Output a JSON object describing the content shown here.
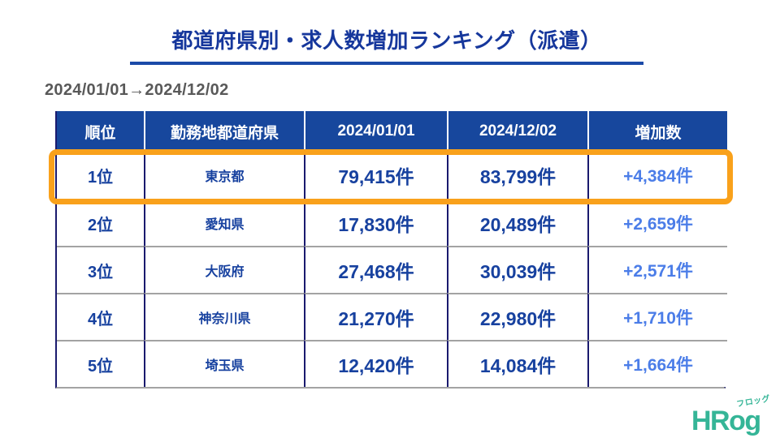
{
  "title": "都道府県別・求人数増加ランキング（派遣）",
  "period": "2024/01/01→2024/12/02",
  "table": {
    "headers": [
      "順位",
      "勤務地都道府県",
      "2024/01/01",
      "2024/12/02",
      "増加数"
    ],
    "rows": [
      {
        "rank": "1位",
        "prefecture": "東京都",
        "count_start": "79,415件",
        "count_end": "83,799件",
        "increase": "+4,384件",
        "highlighted": true
      },
      {
        "rank": "2位",
        "prefecture": "愛知県",
        "count_start": "17,830件",
        "count_end": "20,489件",
        "increase": "+2,659件",
        "highlighted": false
      },
      {
        "rank": "3位",
        "prefecture": "大阪府",
        "count_start": "27,468件",
        "count_end": "30,039件",
        "increase": "+2,571件",
        "highlighted": false
      },
      {
        "rank": "4位",
        "prefecture": "神奈川県",
        "count_start": "21,270件",
        "count_end": "22,980件",
        "increase": "+1,710件",
        "highlighted": false
      },
      {
        "rank": "5位",
        "prefecture": "埼玉県",
        "count_start": "12,420件",
        "count_end": "14,084件",
        "increase": "+1,664件",
        "highlighted": false
      }
    ]
  },
  "logo": {
    "text": "HRog",
    "furigana": "フロッグ"
  },
  "colors": {
    "title_blue": "#16379c",
    "header_bg": "#17479d",
    "cell_text": "#17419f",
    "increase_blue": "#4b7de8",
    "highlight_orange": "#f9a11b",
    "period_gray": "#595959",
    "logo_teal": "#35b597"
  }
}
